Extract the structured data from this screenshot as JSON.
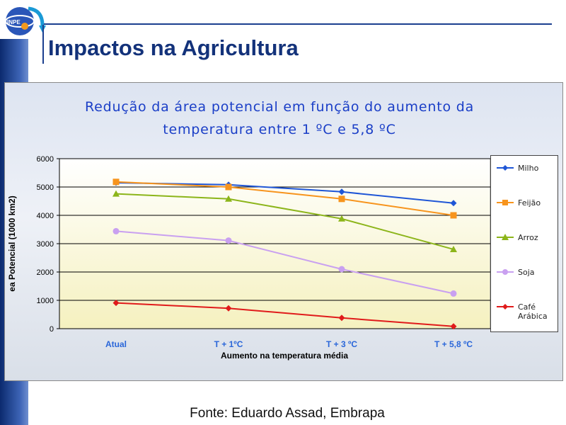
{
  "slide": {
    "title": "Impactos na Agricultura",
    "logo_text": "INPE",
    "source": "Fonte: Eduardo Assad, Embrapa",
    "accent_color": "#13327a"
  },
  "chart_data": {
    "type": "line",
    "title_lines": [
      "Redução da área potencial em função do aumento da",
      "temperatura entre 1 ºC e 5,8 ºC"
    ],
    "xlabel": "Aumento na  temperatura média",
    "ylabel": "ea Potencial (1000 km2)",
    "categories": [
      "Atual",
      "T + 1ºC",
      "T + 3 ºC",
      "T + 5,8 ºC"
    ],
    "ylim": [
      0,
      6000
    ],
    "yticks": [
      "0",
      "1000",
      "2000",
      "3000",
      "4000",
      "5000",
      "6000"
    ],
    "grid": true,
    "legend_position": "right",
    "series": [
      {
        "name": "Milho",
        "color": "#1f56d6",
        "marker": "diamond",
        "values": [
          5150,
          5080,
          4830,
          4430
        ]
      },
      {
        "name": "Feijão",
        "color": "#f7941d",
        "marker": "square",
        "values": [
          5180,
          5000,
          4580,
          4000
        ]
      },
      {
        "name": "Arroz",
        "color": "#8cb51a",
        "marker": "triangle",
        "values": [
          4760,
          4580,
          3880,
          2800
        ]
      },
      {
        "name": "Soja",
        "color": "#c9a0f0",
        "marker": "circle",
        "values": [
          3440,
          3110,
          2100,
          1240
        ]
      },
      {
        "name": "Café Arábica",
        "color": "#e01b1b",
        "marker": "diamond",
        "values": [
          910,
          720,
          380,
          80
        ]
      }
    ]
  }
}
